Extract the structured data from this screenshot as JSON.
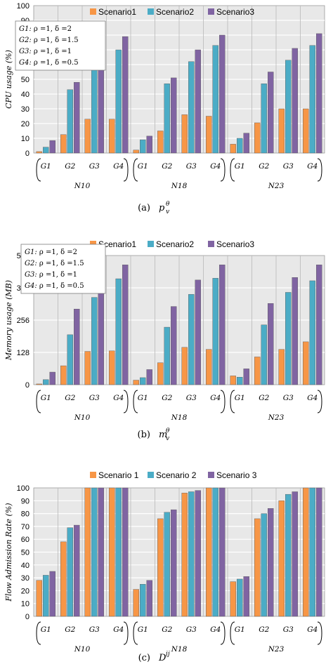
{
  "colors": {
    "scenario1": "#f79646",
    "scenario2": "#4bacc6",
    "scenario3": "#8064a2",
    "plot_bg": "#e8e8e8",
    "grid": "#ffffff"
  },
  "chart_data": [
    {
      "type": "bar",
      "ylabel": "CPU usage (%)",
      "ylim": [
        0,
        100
      ],
      "yticks": [
        "0",
        "10",
        "20",
        "30",
        "40",
        "50",
        "60",
        "70",
        "80",
        "90",
        "100"
      ],
      "legend": [
        "Scenario1",
        "Scenario2",
        "Scenario3"
      ],
      "legend_placement": "top",
      "grid": true,
      "groups": [
        "N10",
        "N18",
        "N23"
      ],
      "categories": [
        "G1",
        "G2",
        "G3",
        "G4",
        "G1",
        "G2",
        "G3",
        "G4",
        "G1",
        "G2",
        "G3",
        "G4"
      ],
      "series": [
        {
          "name": "Scenario1",
          "values": [
            1,
            12.5,
            23,
            23,
            2,
            15,
            26,
            25,
            6,
            20.5,
            30,
            30
          ]
        },
        {
          "name": "Scenario2",
          "values": [
            4,
            43,
            61,
            70,
            9,
            47,
            62,
            73,
            10,
            47,
            63,
            73
          ]
        },
        {
          "name": "Scenario3",
          "values": [
            8.5,
            48,
            70,
            79,
            11.5,
            51,
            70,
            80,
            13.5,
            55,
            71,
            81
          ]
        }
      ],
      "annotation": {
        "lines": [
          {
            "g": "G1:",
            "rest": " ρ =1, δ =2"
          },
          {
            "g": "G2:",
            "rest": " ρ =1, δ =1.5"
          },
          {
            "g": "G3:",
            "rest": " ρ =1, δ =1"
          },
          {
            "g": "G4:",
            "rest": " ρ =1, δ =0.5"
          }
        ]
      },
      "caption": {
        "label": "(a)",
        "sym": "p",
        "sup": "θ",
        "sub": "v"
      }
    },
    {
      "type": "bar",
      "ylabel": "Memory usage (MB)",
      "ylim": [
        0,
        512
      ],
      "yticks": [
        "0",
        "128",
        "256",
        "384",
        "512"
      ],
      "legend": [
        "Scenario1",
        "Scenario2",
        "Scenario3"
      ],
      "legend_placement": "top",
      "grid": true,
      "groups": [
        "N10",
        "N18",
        "N23"
      ],
      "categories": [
        "G1",
        "G2",
        "G3",
        "G4",
        "G1",
        "G2",
        "G3",
        "G4",
        "G1",
        "G2",
        "G3",
        "G4"
      ],
      "series": [
        {
          "name": "Scenario1",
          "values": [
            3,
            75,
            132,
            134,
            18,
            87,
            148,
            140,
            35,
            110,
            140,
            170
          ]
        },
        {
          "name": "Scenario2",
          "values": [
            20,
            198,
            346,
            420,
            28,
            228,
            358,
            422,
            30,
            237,
            366,
            412
          ]
        },
        {
          "name": "Scenario3",
          "values": [
            50,
            300,
            415,
            475,
            60,
            310,
            415,
            475,
            63,
            322,
            425,
            475
          ]
        }
      ],
      "annotation": {
        "lines": [
          {
            "g": "G1:",
            "rest": " ρ =1, δ =2"
          },
          {
            "g": "G2:",
            "rest": " ρ =1, δ =1.5"
          },
          {
            "g": "G3:",
            "rest": " ρ =1, δ =1"
          },
          {
            "g": "G4:",
            "rest": " ρ =1, δ =0.5"
          }
        ]
      },
      "caption": {
        "label": "(b)",
        "sym": "m",
        "sup": "θ",
        "sub": "v"
      }
    },
    {
      "type": "bar",
      "ylabel": "Flow Admission Rate (%)",
      "ylim": [
        0,
        100
      ],
      "yticks": [
        "0",
        "10",
        "20",
        "30",
        "40",
        "50",
        "60",
        "70",
        "80",
        "90",
        "100"
      ],
      "legend": [
        "Scenario 1",
        "Scenario 2",
        "Scenario 3"
      ],
      "legend_placement": "top",
      "grid": true,
      "groups": [
        "N10",
        "N18",
        "N23"
      ],
      "categories": [
        "G1",
        "G2",
        "G3",
        "G4",
        "G1",
        "G2",
        "G3",
        "G4",
        "G1",
        "G2",
        "G3",
        "G4"
      ],
      "series": [
        {
          "name": "Scenario 1",
          "values": [
            28,
            58,
            100,
            100,
            21,
            76,
            96,
            100,
            27,
            76,
            90,
            100
          ]
        },
        {
          "name": "Scenario 2",
          "values": [
            32,
            69,
            100,
            100,
            25,
            81,
            97,
            100,
            29,
            80,
            95,
            100
          ]
        },
        {
          "name": "Scenario 3",
          "values": [
            35,
            71,
            100,
            100,
            28,
            83,
            98,
            100,
            31,
            84,
            97,
            100
          ]
        }
      ],
      "caption": {
        "label": "(c)",
        "sym": "D",
        "sup": "ij",
        "sub": ""
      }
    }
  ]
}
